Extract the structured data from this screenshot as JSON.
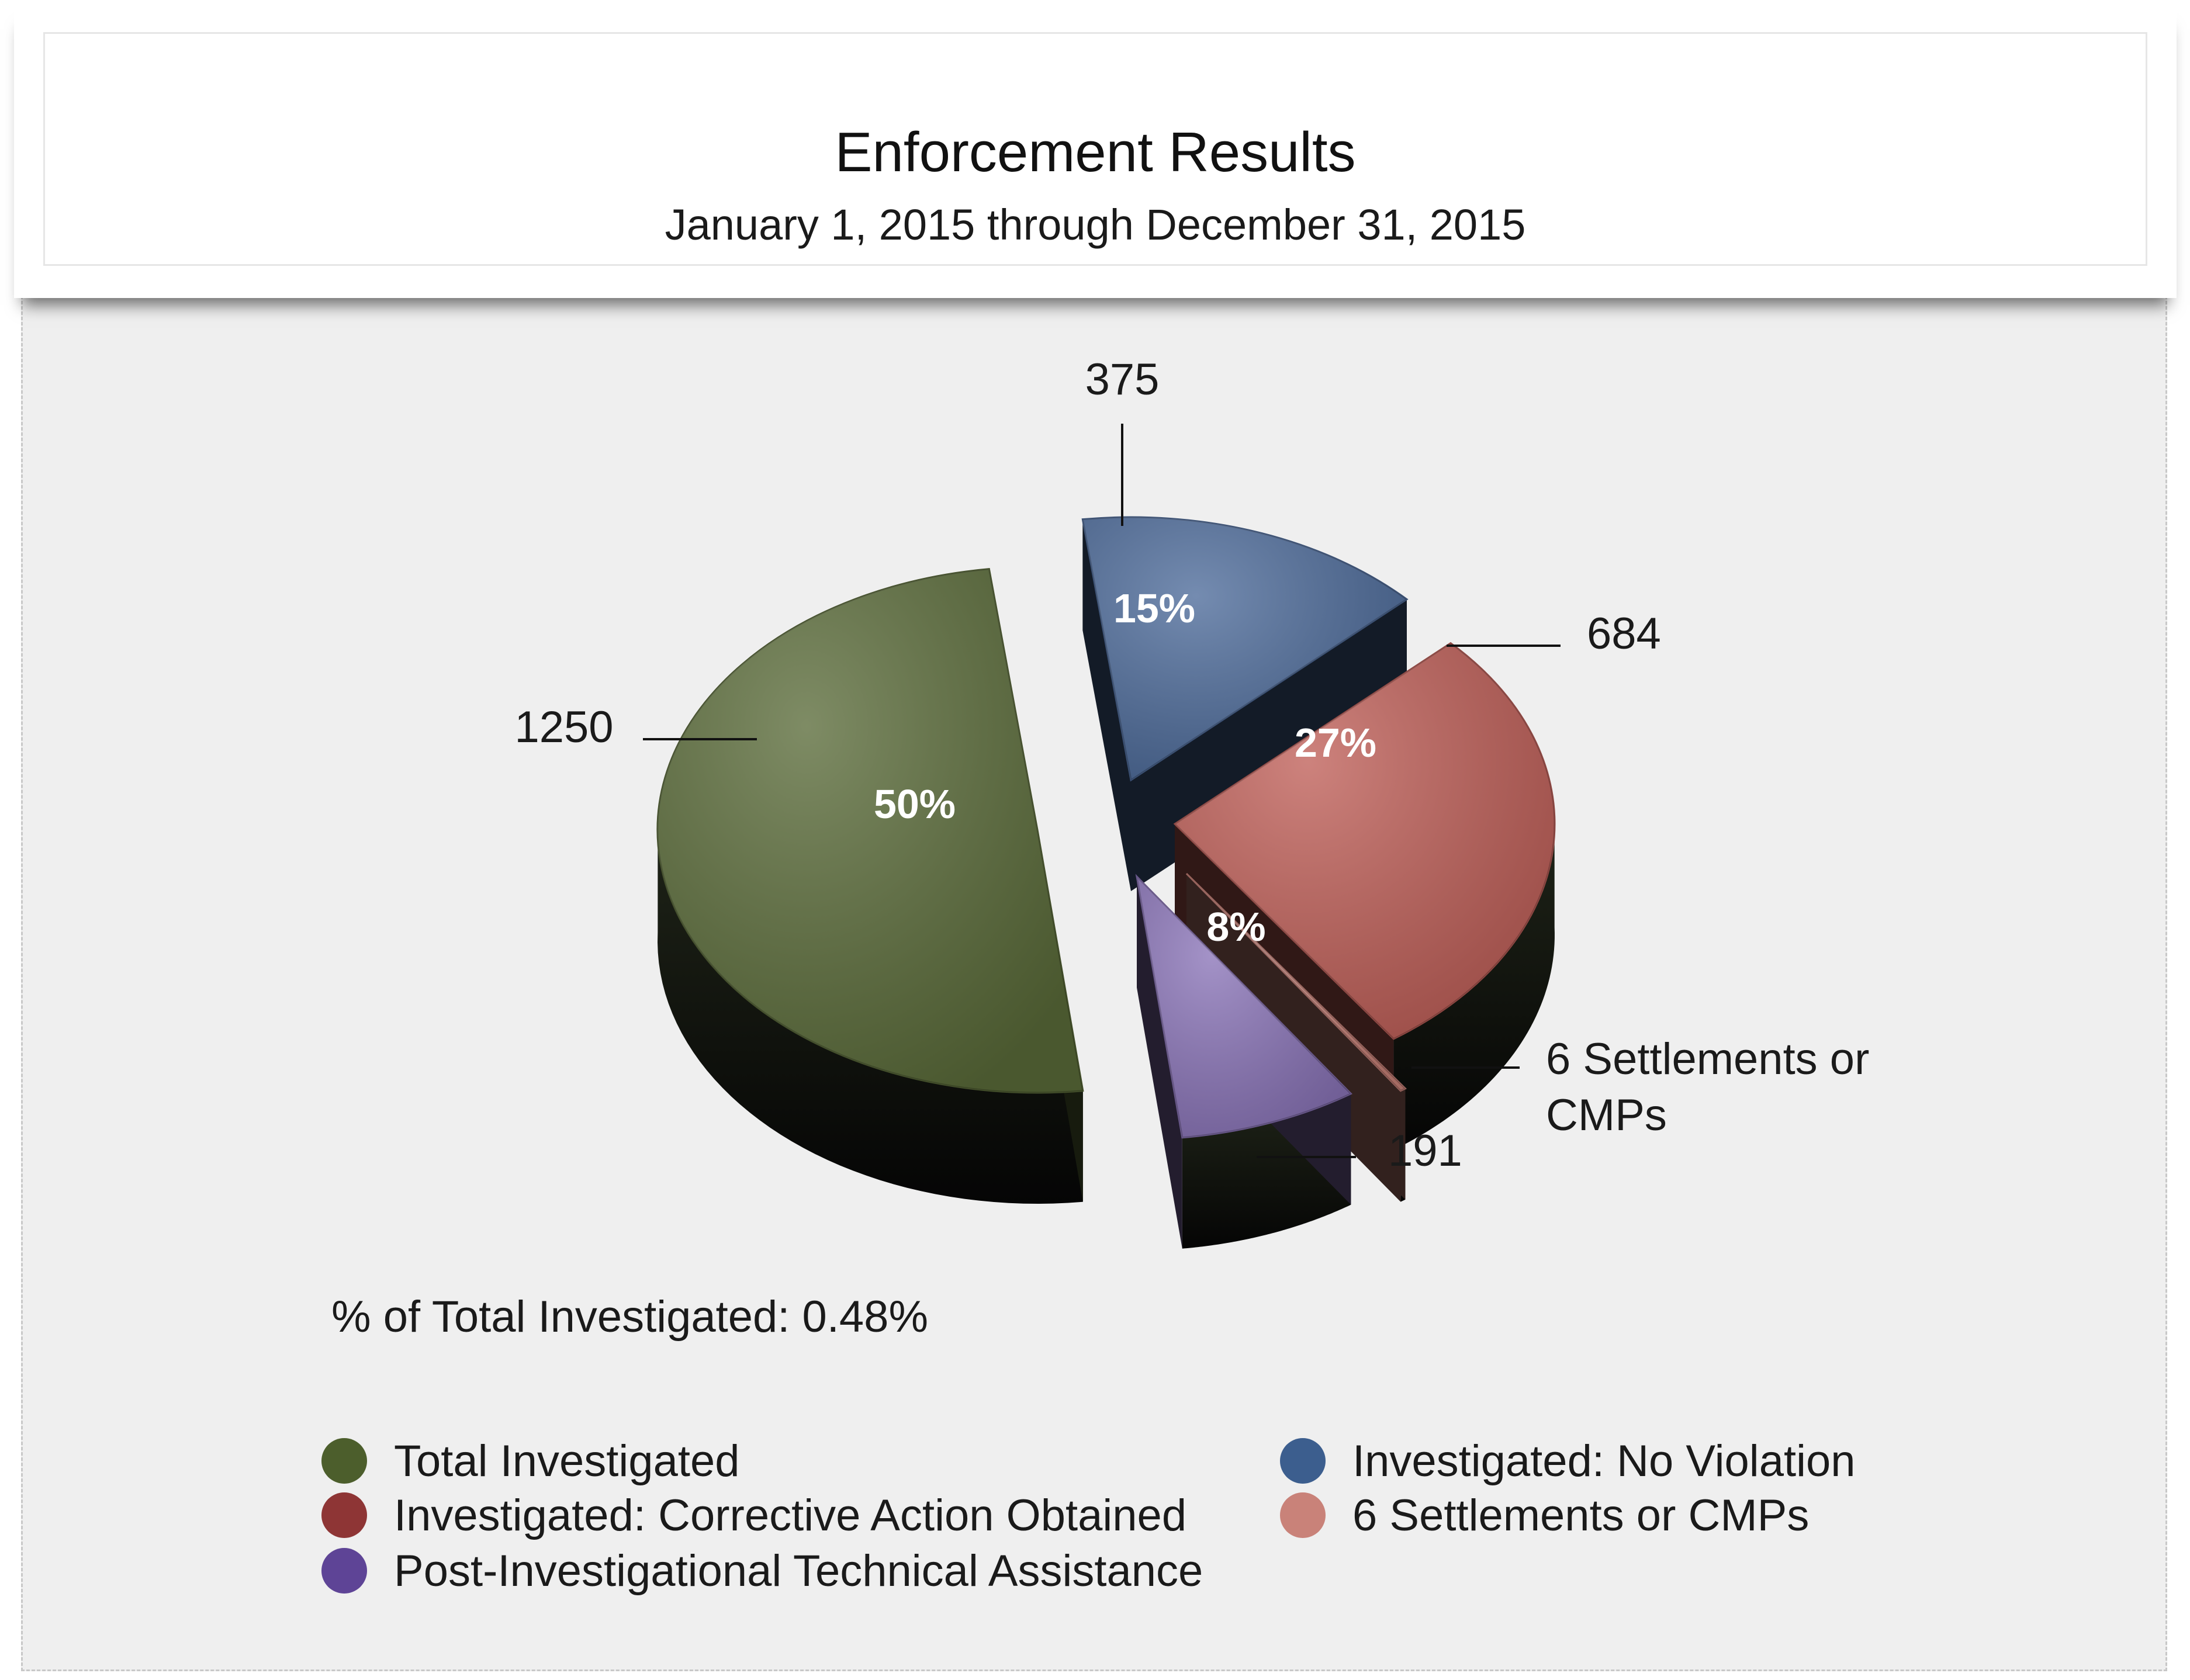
{
  "chart_data": {
    "type": "pie",
    "title": "Enforcement Results",
    "subtitle": "January 1, 2015 through December 31, 2015",
    "slices": [
      {
        "label": "Total Investigated",
        "value": 1250,
        "percent_label": "50%",
        "value_label": "1250",
        "color": "#5a6b39"
      },
      {
        "label": "Investigated: No Violation",
        "value": 375,
        "percent_label": "15%",
        "value_label": "375",
        "color": "#4d6b9a"
      },
      {
        "label": "Investigated: Corrective Action Obtained",
        "value": 684,
        "percent_label": "27%",
        "value_label": "684",
        "color": "#bf5f58"
      },
      {
        "label": "6 Settlements or CMPs",
        "value": 6,
        "percent_label": "",
        "value_label": "6 Settlements or CMPs",
        "color": "#c98279"
      },
      {
        "label": "Post-Investigational Technical Assistance",
        "value": 191,
        "percent_label": "8%",
        "value_label": "191",
        "color": "#8a74b8"
      }
    ],
    "note": "% of Total Investigated: 0.48%",
    "legend_placement": "bottom"
  },
  "legend": [
    {
      "label": "Total Investigated",
      "color": "#4c5e2c"
    },
    {
      "label": "Investigated: Corrective Action Obtained",
      "color": "#8e3535"
    },
    {
      "label": "Post-Investigational Technical Assistance",
      "color": "#5e4496"
    },
    {
      "label": "Investigated: No Violation",
      "color": "#3c5e8e"
    },
    {
      "label": "6 Settlements or CMPs",
      "color": "#c98279"
    }
  ]
}
